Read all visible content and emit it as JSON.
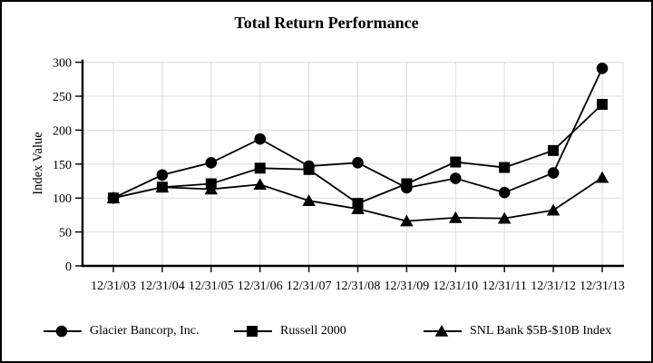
{
  "chart_data": {
    "type": "line",
    "title": "Total Return Performance",
    "xlabel": "",
    "ylabel": "Index Value",
    "categories": [
      "12/31/03",
      "12/31/04",
      "12/31/05",
      "12/31/06",
      "12/31/07",
      "12/31/08",
      "12/31/09",
      "12/31/10",
      "12/31/11",
      "12/31/12",
      "12/31/13"
    ],
    "series": [
      {
        "name": "Glacier Bancorp, Inc.",
        "marker": "circle",
        "values": [
          100,
          134,
          152,
          187,
          147,
          152,
          115,
          129,
          108,
          137,
          291
        ]
      },
      {
        "name": "Russell 2000",
        "marker": "square",
        "values": [
          100,
          116,
          121,
          144,
          142,
          92,
          121,
          153,
          145,
          170,
          238
        ]
      },
      {
        "name": "SNL Bank $5B-$10B Index",
        "marker": "triangle",
        "values": [
          100,
          116,
          113,
          120,
          96,
          84,
          66,
          71,
          70,
          82,
          130
        ]
      }
    ],
    "ylim": [
      0,
      300
    ],
    "ytick_step": 50,
    "grid": true,
    "legend_position": "bottom",
    "colors": {
      "series": "#000000",
      "grid": "#dcdcdc",
      "background": "#ffffff",
      "border": "#000000",
      "text": "#000000"
    }
  }
}
